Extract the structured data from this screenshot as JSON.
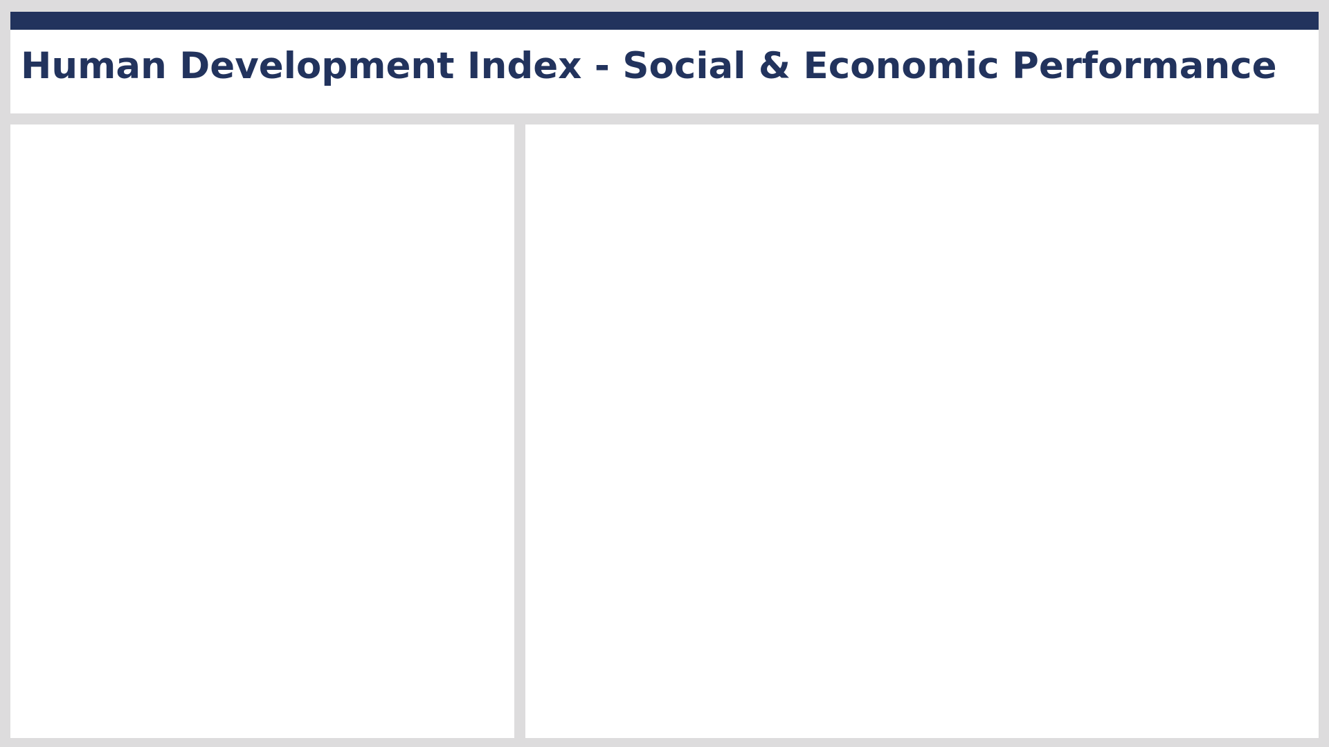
{
  "header": {
    "title": "Human Development Index - Social & Economic Performance"
  },
  "colors": {
    "accent": "#22335d",
    "title": "#22335d",
    "background": "#dddcdd",
    "card": "#ffffff"
  },
  "panels": {
    "left": {
      "content": ""
    },
    "right": {
      "content": ""
    }
  }
}
